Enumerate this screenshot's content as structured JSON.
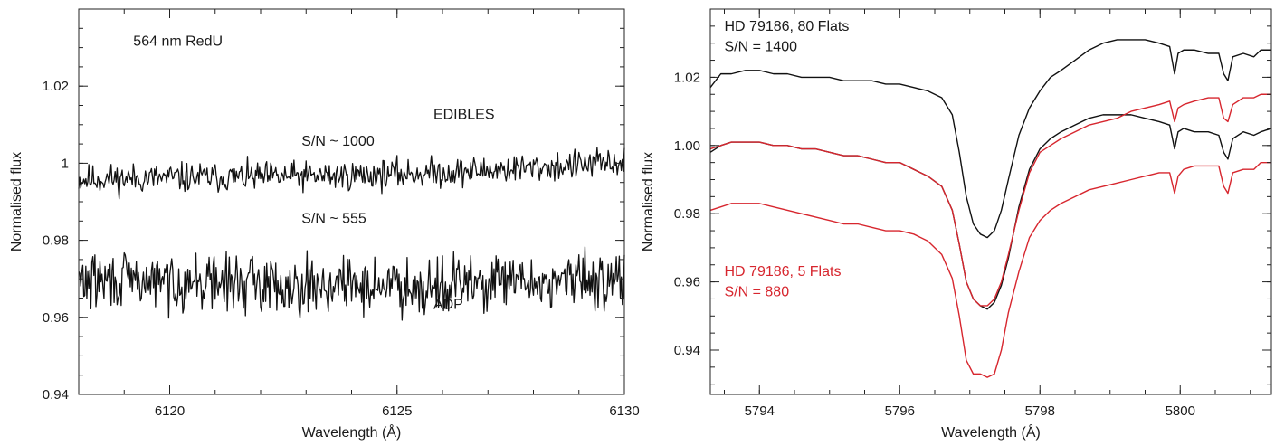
{
  "chart_data": [
    {
      "type": "line",
      "xlabel": "Wavelength (Å)",
      "ylabel": "Normalised flux",
      "xlim": [
        6118,
        6130
      ],
      "ylim": [
        0.94,
        1.04
      ],
      "x_ticks": [
        6120,
        6125,
        6130
      ],
      "x_minor_step": 1,
      "y_ticks": [
        0.94,
        0.96,
        0.98,
        1,
        1.02
      ],
      "y_tick_labels": [
        "0.94",
        "0.96",
        "0.98",
        "1",
        "1.02"
      ],
      "y_minor_step": 0.005,
      "grid": false,
      "annotations": [
        {
          "text": "564 nm RedU",
          "x": 6119.2,
          "y": 1.0305,
          "color": "#1a1a1a"
        },
        {
          "text": "EDIBLES",
          "x": 6125.8,
          "y": 1.0115,
          "color": "#1a1a1a"
        },
        {
          "text": "S/N ~ 1000",
          "x": 6122.9,
          "y": 1.0045,
          "color": "#1a1a1a"
        },
        {
          "text": "S/N ~ 555",
          "x": 6122.9,
          "y": 0.9845,
          "color": "#1a1a1a"
        },
        {
          "text": "ADP",
          "x": 6125.8,
          "y": 0.9622,
          "color": "#1a1a1a"
        }
      ],
      "series": [
        {
          "color": "#111111",
          "noisy": true,
          "points": 540,
          "seed": 11,
          "noise_amp": 0.0019,
          "x": [
            6118,
            6120,
            6122,
            6124,
            6126,
            6128,
            6130
          ],
          "y": [
            0.9958,
            0.9962,
            0.9964,
            0.9968,
            0.9976,
            0.9988,
            1.0002
          ]
        },
        {
          "color": "#111111",
          "noisy": true,
          "points": 540,
          "seed": 29,
          "noise_amp": 0.0036,
          "x": [
            6118,
            6120,
            6122,
            6124,
            6126,
            6128,
            6130
          ],
          "y": [
            0.9695,
            0.9693,
            0.9688,
            0.9683,
            0.9685,
            0.969,
            0.9702
          ]
        }
      ]
    },
    {
      "type": "line",
      "xlabel": "Wavelength (Å)",
      "ylabel": "Normalised flux",
      "xlim": [
        5793.3,
        5801.3
      ],
      "ylim": [
        0.927,
        1.04
      ],
      "x_ticks": [
        5794,
        5796,
        5798,
        5800
      ],
      "x_minor_step": 0.5,
      "y_ticks": [
        0.94,
        0.96,
        0.98,
        1.0,
        1.02
      ],
      "y_tick_labels": [
        "0.94",
        "0.96",
        "0.98",
        "1.00",
        "1.02"
      ],
      "y_minor_step": 0.005,
      "grid": false,
      "annotations": [
        {
          "text": "HD 79186, 80 Flats",
          "x": 5793.5,
          "y": 1.0337,
          "color": "#1a1a1a"
        },
        {
          "text": "S/N = 1400",
          "x": 5793.5,
          "y": 1.0277,
          "color": "#1a1a1a"
        },
        {
          "text": "HD 79186, 5 Flats",
          "x": 5793.5,
          "y": 0.9618,
          "color": "#d7262e"
        },
        {
          "text": "S/N = 880",
          "x": 5793.5,
          "y": 0.9558,
          "color": "#d7262e"
        }
      ],
      "series": [
        {
          "color": "#111111",
          "noisy": false,
          "x": [
            5793.3,
            5793.45,
            5793.6,
            5793.8,
            5794.0,
            5794.2,
            5794.4,
            5794.6,
            5794.8,
            5795.0,
            5795.2,
            5795.4,
            5795.6,
            5795.8,
            5796.0,
            5796.2,
            5796.4,
            5796.6,
            5796.75,
            5796.85,
            5796.95,
            5797.05,
            5797.15,
            5797.25,
            5797.35,
            5797.45,
            5797.55,
            5797.7,
            5797.85,
            5798.0,
            5798.15,
            5798.3,
            5798.5,
            5798.7,
            5798.9,
            5799.1,
            5799.3,
            5799.5,
            5799.7,
            5799.85,
            5799.92,
            5799.97,
            5800.05,
            5800.2,
            5800.4,
            5800.55,
            5800.62,
            5800.68,
            5800.75,
            5800.9,
            5801.05,
            5801.15,
            5801.3
          ],
          "y": [
            1.017,
            1.021,
            1.021,
            1.022,
            1.022,
            1.021,
            1.021,
            1.02,
            1.02,
            1.02,
            1.019,
            1.019,
            1.019,
            1.018,
            1.018,
            1.017,
            1.016,
            1.014,
            1.009,
            0.998,
            0.985,
            0.977,
            0.974,
            0.973,
            0.975,
            0.981,
            0.99,
            1.003,
            1.011,
            1.016,
            1.02,
            1.022,
            1.025,
            1.028,
            1.03,
            1.031,
            1.031,
            1.031,
            1.03,
            1.029,
            1.021,
            1.027,
            1.028,
            1.028,
            1.027,
            1.027,
            1.021,
            1.019,
            1.026,
            1.027,
            1.026,
            1.028,
            1.028
          ]
        },
        {
          "color": "#111111",
          "noisy": false,
          "x": [
            5793.3,
            5793.45,
            5793.6,
            5793.8,
            5794.0,
            5794.2,
            5794.4,
            5794.6,
            5794.8,
            5795.0,
            5795.2,
            5795.4,
            5795.6,
            5795.8,
            5796.0,
            5796.2,
            5796.4,
            5796.6,
            5796.75,
            5796.85,
            5796.95,
            5797.05,
            5797.15,
            5797.25,
            5797.35,
            5797.45,
            5797.55,
            5797.7,
            5797.85,
            5798.0,
            5798.15,
            5798.3,
            5798.5,
            5798.7,
            5798.9,
            5799.1,
            5799.3,
            5799.5,
            5799.7,
            5799.85,
            5799.92,
            5799.97,
            5800.05,
            5800.2,
            5800.4,
            5800.55,
            5800.62,
            5800.68,
            5800.75,
            5800.9,
            5801.05,
            5801.15,
            5801.3
          ],
          "y": [
            0.998,
            1.0,
            1.001,
            1.001,
            1.001,
            1.0,
            1.0,
            0.999,
            0.999,
            0.998,
            0.997,
            0.997,
            0.996,
            0.995,
            0.995,
            0.993,
            0.991,
            0.988,
            0.981,
            0.971,
            0.96,
            0.955,
            0.953,
            0.952,
            0.954,
            0.959,
            0.967,
            0.982,
            0.993,
            0.999,
            1.002,
            1.004,
            1.006,
            1.008,
            1.009,
            1.009,
            1.009,
            1.008,
            1.007,
            1.006,
            0.999,
            1.004,
            1.005,
            1.004,
            1.004,
            1.003,
            0.998,
            0.996,
            1.002,
            1.004,
            1.003,
            1.004,
            1.005
          ]
        },
        {
          "color": "#d7262e",
          "noisy": false,
          "x": [
            5793.3,
            5793.45,
            5793.6,
            5793.8,
            5794.0,
            5794.2,
            5794.4,
            5794.6,
            5794.8,
            5795.0,
            5795.2,
            5795.4,
            5795.6,
            5795.8,
            5796.0,
            5796.2,
            5796.4,
            5796.6,
            5796.75,
            5796.85,
            5796.95,
            5797.05,
            5797.15,
            5797.25,
            5797.35,
            5797.45,
            5797.55,
            5797.7,
            5797.85,
            5798.0,
            5798.15,
            5798.3,
            5798.5,
            5798.7,
            5798.9,
            5799.1,
            5799.3,
            5799.5,
            5799.7,
            5799.85,
            5799.92,
            5799.97,
            5800.05,
            5800.2,
            5800.4,
            5800.55,
            5800.62,
            5800.68,
            5800.75,
            5800.9,
            5801.05,
            5801.15,
            5801.3
          ],
          "y": [
            0.999,
            1.0,
            1.001,
            1.001,
            1.001,
            1.0,
            1.0,
            0.999,
            0.999,
            0.998,
            0.997,
            0.997,
            0.996,
            0.995,
            0.995,
            0.993,
            0.991,
            0.988,
            0.981,
            0.971,
            0.96,
            0.955,
            0.953,
            0.953,
            0.955,
            0.96,
            0.968,
            0.981,
            0.992,
            0.998,
            1.0,
            1.002,
            1.004,
            1.006,
            1.007,
            1.008,
            1.01,
            1.011,
            1.012,
            1.013,
            1.007,
            1.011,
            1.012,
            1.013,
            1.014,
            1.014,
            1.008,
            1.007,
            1.012,
            1.014,
            1.014,
            1.015,
            1.015
          ]
        },
        {
          "color": "#d7262e",
          "noisy": false,
          "x": [
            5793.3,
            5793.45,
            5793.6,
            5793.8,
            5794.0,
            5794.2,
            5794.4,
            5794.6,
            5794.8,
            5795.0,
            5795.2,
            5795.4,
            5795.6,
            5795.8,
            5796.0,
            5796.2,
            5796.4,
            5796.6,
            5796.75,
            5796.85,
            5796.95,
            5797.05,
            5797.15,
            5797.25,
            5797.35,
            5797.45,
            5797.55,
            5797.7,
            5797.85,
            5798.0,
            5798.15,
            5798.3,
            5798.5,
            5798.7,
            5798.9,
            5799.1,
            5799.3,
            5799.5,
            5799.7,
            5799.85,
            5799.92,
            5799.97,
            5800.05,
            5800.2,
            5800.4,
            5800.55,
            5800.62,
            5800.68,
            5800.75,
            5800.9,
            5801.05,
            5801.15,
            5801.3
          ],
          "y": [
            0.981,
            0.982,
            0.983,
            0.983,
            0.983,
            0.982,
            0.981,
            0.98,
            0.979,
            0.978,
            0.977,
            0.977,
            0.976,
            0.975,
            0.975,
            0.974,
            0.972,
            0.968,
            0.961,
            0.95,
            0.937,
            0.933,
            0.933,
            0.932,
            0.933,
            0.94,
            0.951,
            0.963,
            0.973,
            0.978,
            0.981,
            0.983,
            0.985,
            0.987,
            0.988,
            0.989,
            0.99,
            0.991,
            0.992,
            0.992,
            0.986,
            0.991,
            0.993,
            0.994,
            0.994,
            0.994,
            0.988,
            0.986,
            0.992,
            0.993,
            0.993,
            0.995,
            0.995
          ]
        }
      ]
    }
  ]
}
